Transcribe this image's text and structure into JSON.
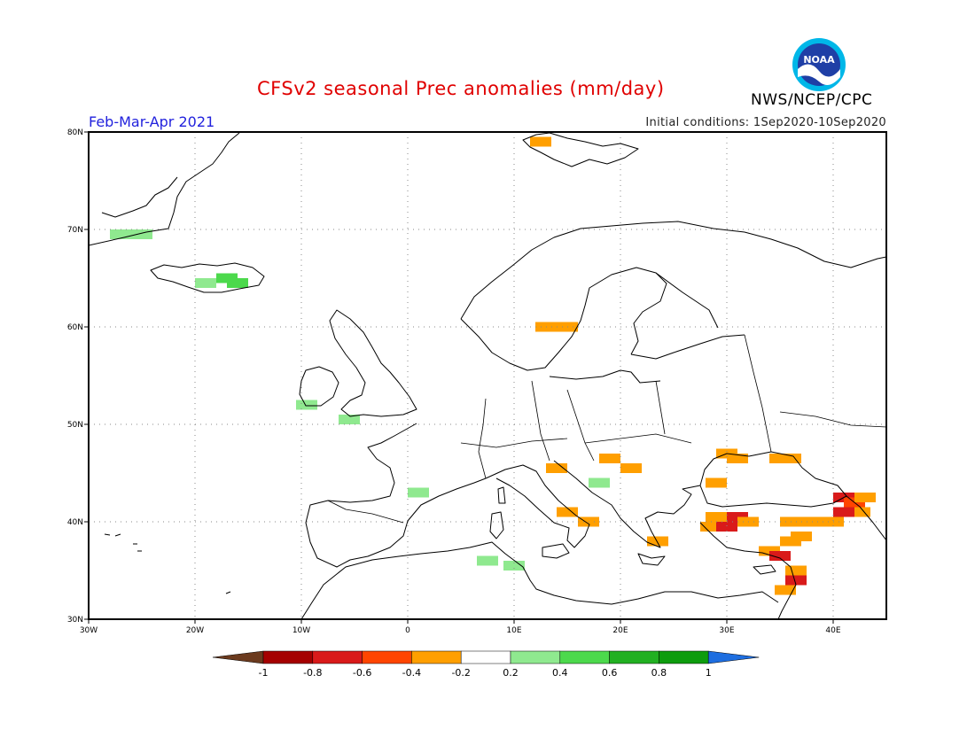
{
  "header": {
    "title": "CFSv2 seasonal Prec anomalies (mm/day)",
    "period": "Feb-Mar-Apr 2021",
    "initial_conditions": "Initial conditions: 1Sep2020-10Sep2020",
    "agency": "NWS/NCEP/CPC",
    "logo_text": "NOAA"
  },
  "map": {
    "lon_range": [
      -30,
      45
    ],
    "lat_range": [
      30,
      80
    ],
    "lat_labels": [
      "80N",
      "70N",
      "60N",
      "50N",
      "40N",
      "30N"
    ],
    "lon_labels": [
      "30W",
      "20W",
      "10W",
      "0",
      "10E",
      "20E",
      "30E",
      "40E"
    ]
  },
  "colorbar": {
    "tick_labels": [
      "-1",
      "-0.8",
      "-0.6",
      "-0.4",
      "-0.2",
      "0.2",
      "0.4",
      "0.6",
      "0.8",
      "1"
    ],
    "colors": [
      "#6b3a1e",
      "#a50000",
      "#d91a1a",
      "#ff4500",
      "#ff9f00",
      "#ffffff",
      "#8fe98f",
      "#4cd94c",
      "#22b022",
      "#0e9c0e",
      "#1e6ee0"
    ]
  },
  "anomaly_cells": [
    {
      "lon": -27,
      "lat": 69.5,
      "color": "#8fe98f"
    },
    {
      "lon": -25,
      "lat": 69.5,
      "color": "#8fe98f"
    },
    {
      "lon": -19,
      "lat": 64.5,
      "color": "#8fe98f"
    },
    {
      "lon": -17,
      "lat": 65,
      "color": "#4cd94c"
    },
    {
      "lon": -16,
      "lat": 64.5,
      "color": "#4cd94c"
    },
    {
      "lon": -9.5,
      "lat": 52,
      "color": "#8fe98f"
    },
    {
      "lon": -5.5,
      "lat": 50.5,
      "color": "#8fe98f"
    },
    {
      "lon": 1,
      "lat": 43,
      "color": "#8fe98f"
    },
    {
      "lon": 7.5,
      "lat": 36,
      "color": "#8fe98f"
    },
    {
      "lon": 10,
      "lat": 35.5,
      "color": "#8fe98f"
    },
    {
      "lon": 18,
      "lat": 44,
      "color": "#8fe98f"
    },
    {
      "lon": 12.5,
      "lat": 79,
      "color": "#ff9f00"
    },
    {
      "lon": 13,
      "lat": 60,
      "color": "#ff9f00"
    },
    {
      "lon": 15,
      "lat": 60,
      "color": "#ff9f00"
    },
    {
      "lon": 14,
      "lat": 45.5,
      "color": "#ff9f00"
    },
    {
      "lon": 19,
      "lat": 46.5,
      "color": "#ff9f00"
    },
    {
      "lon": 21,
      "lat": 45.5,
      "color": "#ff9f00"
    },
    {
      "lon": 15,
      "lat": 41,
      "color": "#ff9f00"
    },
    {
      "lon": 17,
      "lat": 40,
      "color": "#ff9f00"
    },
    {
      "lon": 23.5,
      "lat": 38,
      "color": "#ff9f00"
    },
    {
      "lon": 29,
      "lat": 44,
      "color": "#ff9f00"
    },
    {
      "lon": 30,
      "lat": 47,
      "color": "#ff9f00"
    },
    {
      "lon": 31,
      "lat": 46.5,
      "color": "#ff9f00"
    },
    {
      "lon": 35,
      "lat": 46.5,
      "color": "#ff9f00"
    },
    {
      "lon": 36,
      "lat": 46.5,
      "color": "#ff9f00"
    },
    {
      "lon": 28.5,
      "lat": 39.5,
      "color": "#ff9f00"
    },
    {
      "lon": 29,
      "lat": 40.5,
      "color": "#ff9f00"
    },
    {
      "lon": 30,
      "lat": 39.5,
      "color": "#d91a1a"
    },
    {
      "lon": 31,
      "lat": 40.5,
      "color": "#d91a1a"
    },
    {
      "lon": 32,
      "lat": 40,
      "color": "#ff9f00"
    },
    {
      "lon": 34,
      "lat": 37,
      "color": "#ff9f00"
    },
    {
      "lon": 35,
      "lat": 36.5,
      "color": "#d91a1a"
    },
    {
      "lon": 36,
      "lat": 38,
      "color": "#ff9f00"
    },
    {
      "lon": 37,
      "lat": 38.5,
      "color": "#ff9f00"
    },
    {
      "lon": 36,
      "lat": 40,
      "color": "#ff9f00"
    },
    {
      "lon": 38,
      "lat": 40,
      "color": "#ff9f00"
    },
    {
      "lon": 40,
      "lat": 40,
      "color": "#ff9f00"
    },
    {
      "lon": 36.5,
      "lat": 35,
      "color": "#ff9f00"
    },
    {
      "lon": 36.5,
      "lat": 34,
      "color": "#d91a1a"
    },
    {
      "lon": 35.5,
      "lat": 33,
      "color": "#ff9f00"
    },
    {
      "lon": 41,
      "lat": 42.5,
      "color": "#d91a1a"
    },
    {
      "lon": 42,
      "lat": 42,
      "color": "#ff4500"
    },
    {
      "lon": 42.5,
      "lat": 41,
      "color": "#ff9f00"
    },
    {
      "lon": 43,
      "lat": 42.5,
      "color": "#ff9f00"
    },
    {
      "lon": 41,
      "lat": 41,
      "color": "#d91a1a"
    }
  ]
}
